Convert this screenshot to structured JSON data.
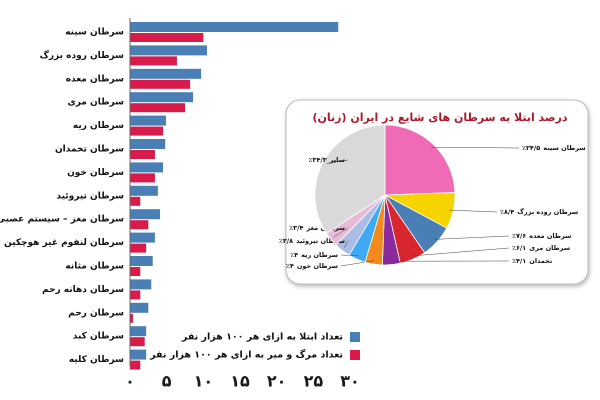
{
  "chart_data": [
    {
      "type": "bar",
      "orientation": "horizontal",
      "categories": [
        "سرطان سینه",
        "سرطان روده بزرگ",
        "سرطان معده",
        "سرطان مری",
        "سرطان ریه",
        "سرطان تخمدان",
        "سرطان خون",
        "سرطان تیروئید",
        "سرطان مغز – سیستم عصبی",
        "سرطان لنفوم غیر هوچکین",
        "سرطان مثانه",
        "سرطان دهانه رحم",
        "سرطان رحم",
        "سرطان کبد",
        "سرطان کلیه"
      ],
      "series": [
        {
          "name": "تعداد ابتلا به ازای هر ۱۰۰ هزار نفر",
          "color": "#4a7fb5",
          "values": [
            28.4,
            10.5,
            9.7,
            8.6,
            4.9,
            4.8,
            4.5,
            3.8,
            4.1,
            3.4,
            3.1,
            2.9,
            2.5,
            2.2,
            2.2
          ]
        },
        {
          "name": "تعداد مرگ و میر به ازای هر ۱۰۰ هزار نفر",
          "color": "#d81b4a",
          "values": [
            10,
            6.4,
            8.2,
            7.5,
            4.5,
            3.4,
            3.4,
            1.4,
            2.5,
            2.2,
            1.4,
            1.4,
            0.4,
            2,
            1.4
          ]
        }
      ],
      "xlim": [
        0,
        30
      ],
      "xticks": [
        {
          "value": 0,
          "label": "۰"
        },
        {
          "value": 5,
          "label": "۵"
        },
        {
          "value": 10,
          "label": "۱۰"
        },
        {
          "value": 15,
          "label": "۱۵"
        },
        {
          "value": 20,
          "label": "۲۰"
        },
        {
          "value": 25,
          "label": "۲۵"
        },
        {
          "value": 30,
          "label": "۳۰"
        }
      ],
      "legend": "bottom-right"
    },
    {
      "type": "pie",
      "title": "درصد ابتلا به سرطان های شایع در ایران (زنان)",
      "categories": [
        "سرطان سینه",
        "سرطان روده بزرگ",
        "سرطان معده",
        "سرطان مری",
        "تخمدان",
        "سرطان خون",
        "سرطان ریه",
        "سرطان تیروئید",
        "سرطان مغز",
        "سایر"
      ],
      "values": [
        24.5,
        8.4,
        7.6,
        6.1,
        4.1,
        4,
        4,
        3.8,
        3.4,
        34.3
      ],
      "value_labels": [
        "٪۲۴/۵",
        "٪۸/۴",
        "٪۷/۶",
        "٪۶/۱",
        "٪۴/۱",
        "٪۴",
        "٪۴",
        "٪۳/۸",
        "٪۳/۴",
        "٪۳۴/۳"
      ],
      "colors": [
        "#f06bb5",
        "#f5d400",
        "#4a7fb5",
        "#d8262e",
        "#8a2a9c",
        "#f28a1e",
        "#3fa9f5",
        "#a9bce6",
        "#e8bcd8",
        "#d9d9d9"
      ]
    }
  ]
}
